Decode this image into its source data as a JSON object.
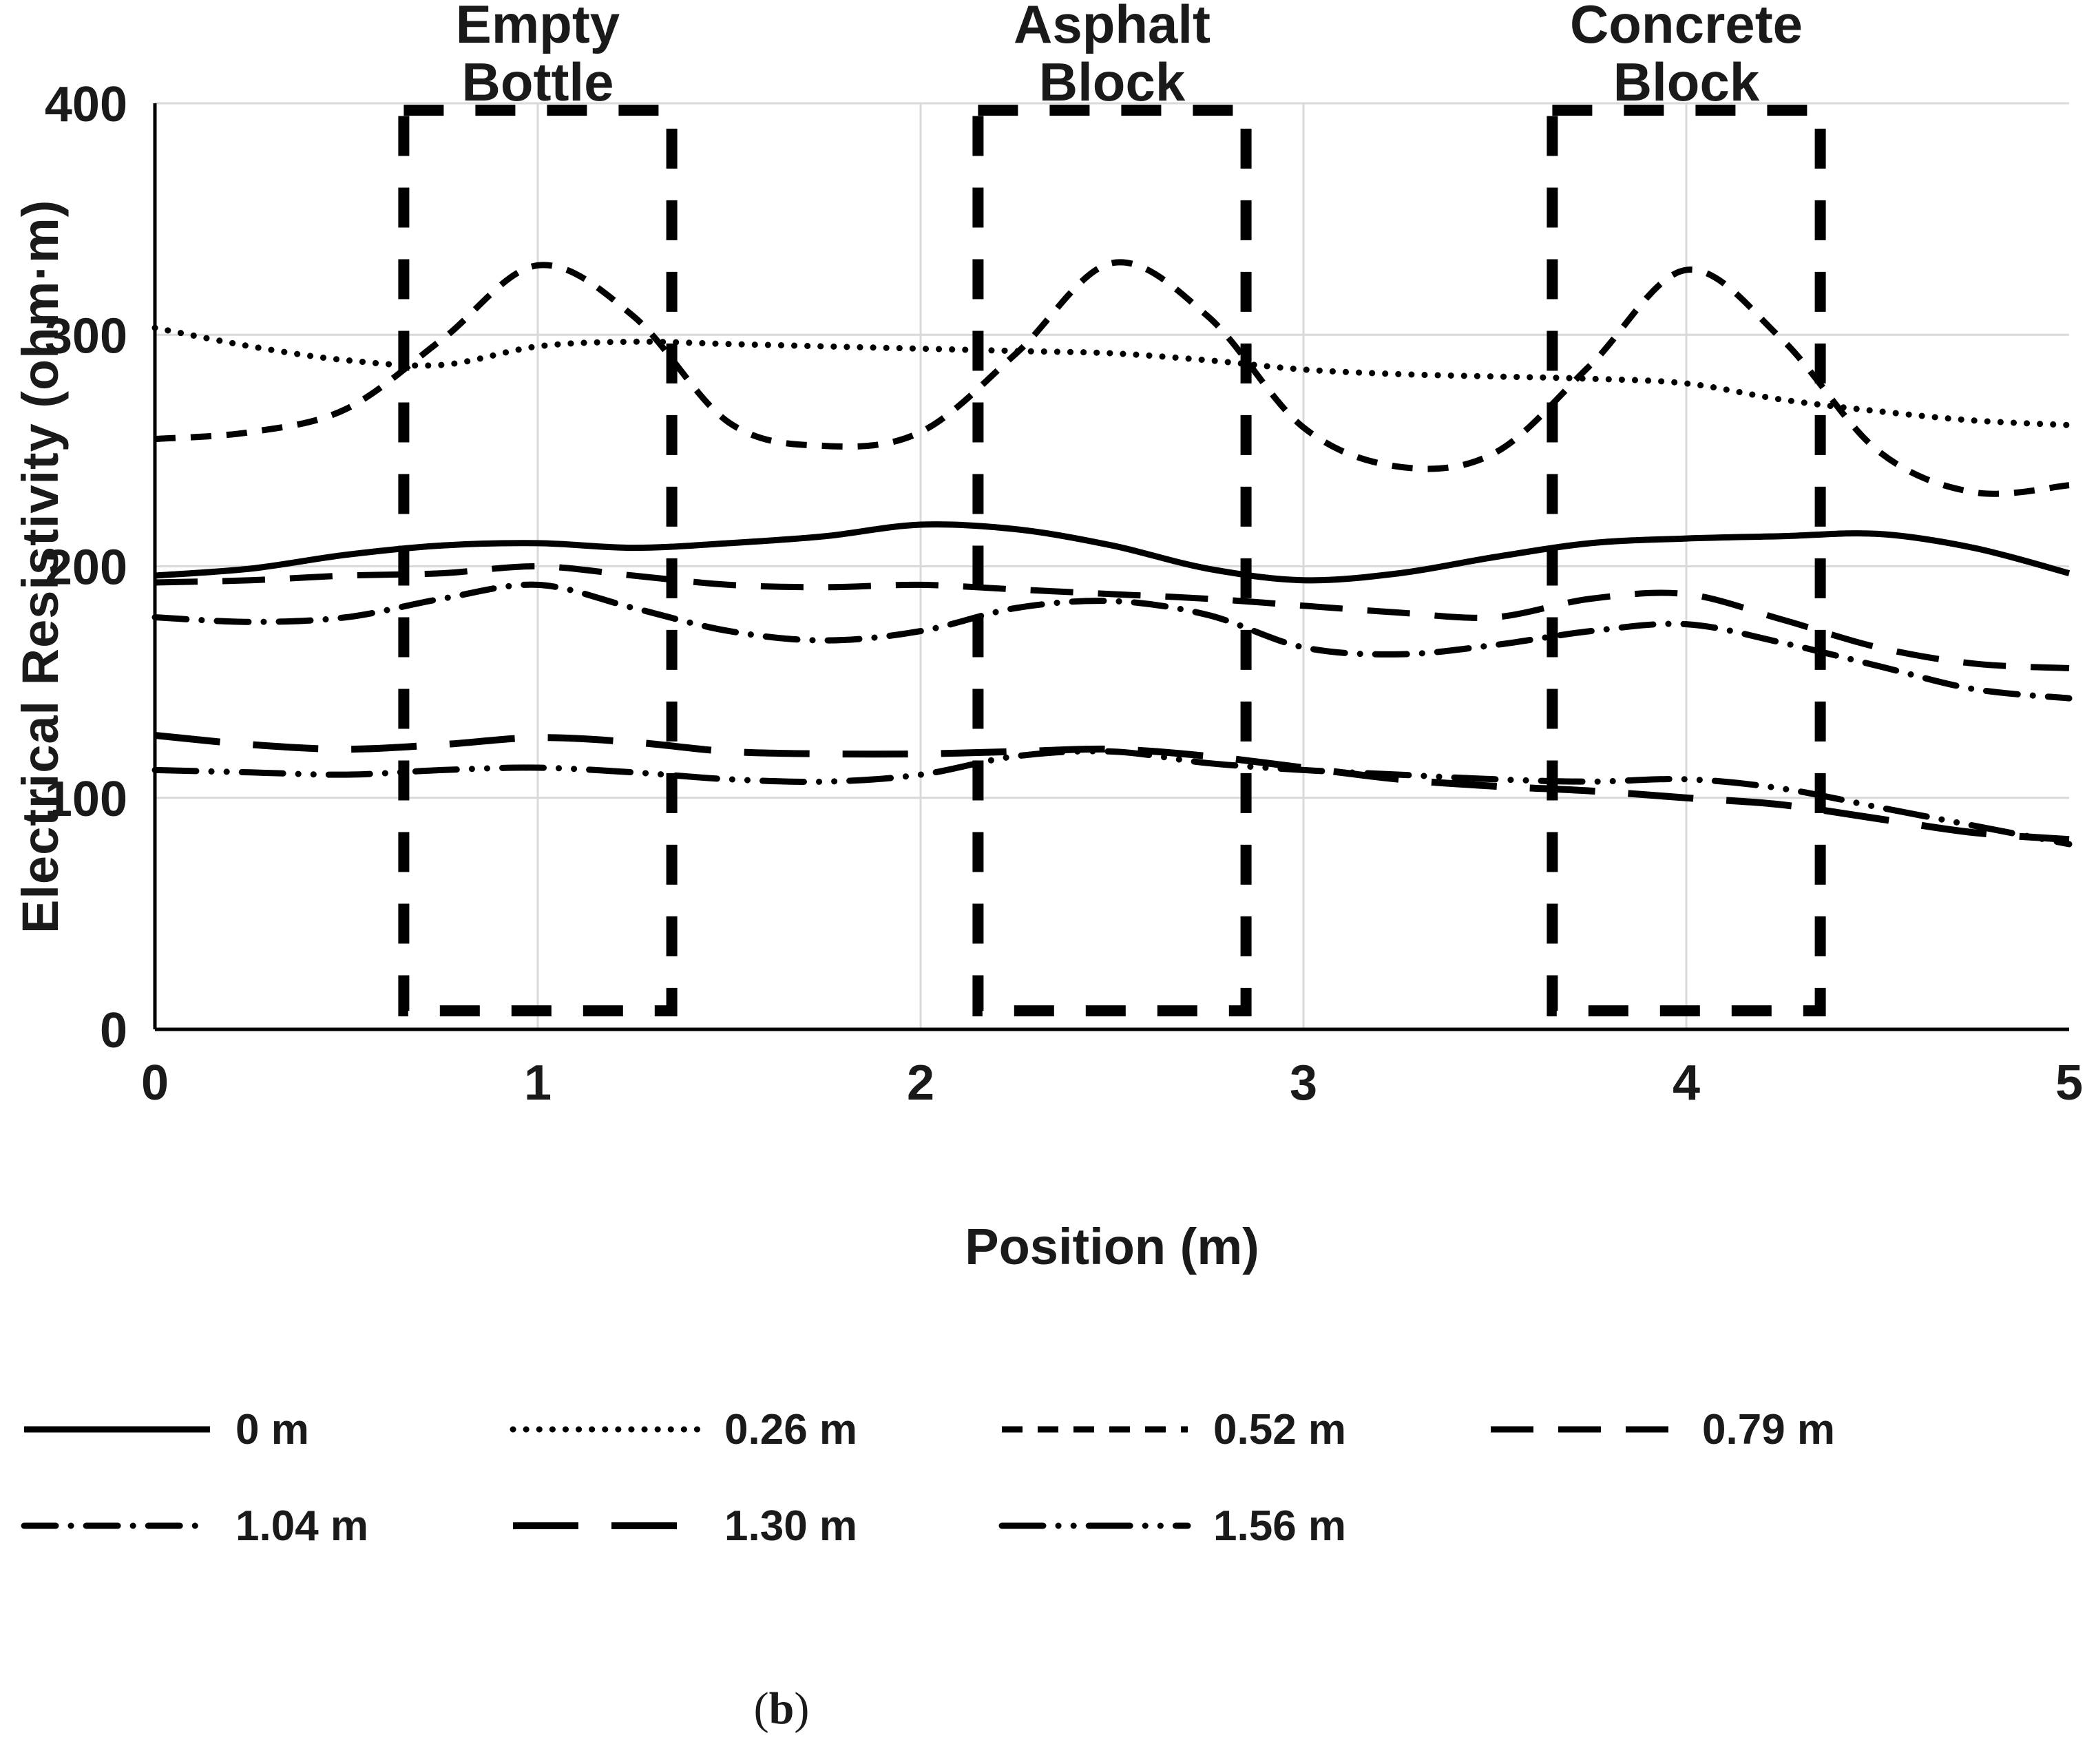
{
  "chart_data": {
    "type": "line",
    "title": "",
    "xlabel": "Position (m)",
    "ylabel": "Electrical Resistivity (ohm·m)",
    "xlim": [
      0,
      5
    ],
    "ylim": [
      0,
      400
    ],
    "x_ticks": [
      0,
      1,
      2,
      3,
      4,
      5
    ],
    "y_ticks": [
      0,
      100,
      200,
      300,
      400
    ],
    "grid": true,
    "legend_position": "bottom",
    "colors": {
      "line": "#000000",
      "grid": "#d9d9d9",
      "axis": "#000000"
    },
    "x": [
      0,
      0.25,
      0.5,
      0.75,
      1,
      1.25,
      1.5,
      1.75,
      2,
      2.25,
      2.5,
      2.75,
      3,
      3.25,
      3.5,
      3.75,
      4,
      4.25,
      4.5,
      4.75,
      5
    ],
    "series": [
      {
        "name": "0 m",
        "dash": "solid",
        "values": [
          196,
          199,
          205,
          209,
          210,
          208,
          210,
          213,
          218,
          216,
          209,
          199,
          194,
          197,
          204,
          210,
          212,
          213,
          214,
          208,
          197
        ]
      },
      {
        "name": "0.26 m",
        "dash": "dotted",
        "values": [
          303,
          295,
          289,
          287,
          295,
          297,
          296,
          295,
          294,
          293,
          292,
          289,
          285,
          283,
          282,
          281,
          279,
          272,
          267,
          263,
          261
        ]
      },
      {
        "name": "0.52 m",
        "dash": "dashed",
        "values": [
          255,
          258,
          268,
          298,
          330,
          308,
          262,
          252,
          258,
          292,
          331,
          308,
          260,
          243,
          249,
          287,
          328,
          298,
          250,
          232,
          235
        ]
      },
      {
        "name": "0.79 m",
        "dash": "longdash",
        "values": [
          193,
          194,
          196,
          197,
          200,
          196,
          192,
          191,
          192,
          190,
          188,
          186,
          183,
          180,
          178,
          186,
          188,
          177,
          165,
          158,
          156
        ]
      },
      {
        "name": "1.04 m",
        "dash": "dashdot",
        "values": [
          178,
          176,
          178,
          186,
          192,
          182,
          172,
          168,
          172,
          182,
          185,
          179,
          165,
          162,
          166,
          172,
          175,
          167,
          157,
          147,
          143
        ]
      },
      {
        "name": "1.30 m",
        "dash": "xlongdash",
        "values": [
          127,
          123,
          121,
          123,
          126,
          124,
          120,
          119,
          119,
          120,
          121,
          118,
          113,
          108,
          105,
          103,
          100,
          97,
          91,
          85,
          82
        ]
      },
      {
        "name": "1.56 m",
        "dash": "dashdotdot",
        "values": [
          112,
          111,
          110,
          112,
          113,
          111,
          108,
          107,
          110,
          118,
          120,
          115,
          112,
          110,
          108,
          107,
          108,
          104,
          96,
          88,
          80
        ]
      }
    ],
    "annotations": [
      {
        "label": "Empty Bottle",
        "label_lines": [
          "Empty",
          "Bottle"
        ],
        "x_range": [
          0.65,
          1.35
        ]
      },
      {
        "label": "Asphalt Block",
        "label_lines": [
          "Asphalt",
          "Block"
        ],
        "x_range": [
          2.15,
          2.85
        ]
      },
      {
        "label": "Concrete Block",
        "label_lines": [
          "Concrete",
          "Block"
        ],
        "x_range": [
          3.65,
          4.35
        ]
      }
    ]
  },
  "legend": {
    "rows": [
      [
        {
          "label": "0 m",
          "dash": "solid"
        },
        {
          "label": "0.26 m",
          "dash": "dotted"
        },
        {
          "label": "0.52 m",
          "dash": "dashed"
        },
        {
          "label": "0.79 m",
          "dash": "longdash"
        }
      ],
      [
        {
          "label": "1.04 m",
          "dash": "dashdot"
        },
        {
          "label": "1.30 m",
          "dash": "xlongdash"
        },
        {
          "label": "1.56 m",
          "dash": "dashdotdot"
        }
      ]
    ]
  },
  "caption": {
    "open": "(",
    "letter": "b",
    "close": ")"
  }
}
